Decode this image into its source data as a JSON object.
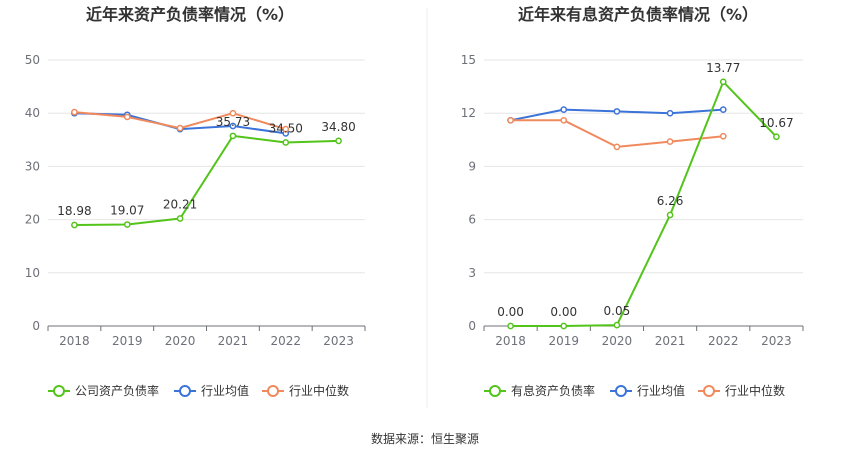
{
  "source_label": "数据来源：恒生聚源",
  "chart_data": [
    {
      "type": "line",
      "title": "近年来资产负债率情况（%）",
      "categories": [
        "2018",
        "2019",
        "2020",
        "2021",
        "2022",
        "2023"
      ],
      "ylim": [
        0,
        50
      ],
      "yticks": [
        0,
        10,
        20,
        30,
        40,
        50
      ],
      "ytick_labels": [
        "0",
        "10",
        "20",
        "30",
        "40",
        "50"
      ],
      "grid": true,
      "legend_position": "bottom",
      "series": [
        {
          "name": "公司资产负债率",
          "color": "#52c41a",
          "values": [
            18.98,
            19.07,
            20.21,
            35.73,
            34.5,
            34.8
          ],
          "labels": [
            "18.98",
            "19.07",
            "20.21",
            "35.73",
            "34.50",
            "34.80"
          ]
        },
        {
          "name": "行业均值",
          "color": "#3b73d9",
          "values": [
            40.0,
            39.7,
            37.0,
            37.6,
            36.2,
            null
          ]
        },
        {
          "name": "行业中位数",
          "color": "#f08a5d",
          "values": [
            40.2,
            39.3,
            37.2,
            40.0,
            37.0,
            null
          ]
        }
      ]
    },
    {
      "type": "line",
      "title": "近年来有息资产负债率情况（%）",
      "categories": [
        "2018",
        "2019",
        "2020",
        "2021",
        "2022",
        "2023"
      ],
      "ylim": [
        0,
        15
      ],
      "yticks": [
        0,
        3,
        6,
        9,
        12,
        15
      ],
      "ytick_labels": [
        "0",
        "3",
        "6",
        "9",
        "12",
        "15"
      ],
      "grid": true,
      "legend_position": "bottom",
      "series": [
        {
          "name": "有息资产负债率",
          "color": "#52c41a",
          "values": [
            0.0,
            0.0,
            0.05,
            6.26,
            13.77,
            10.67
          ],
          "labels": [
            "0.00",
            "0.00",
            "0.05",
            "6.26",
            "13.77",
            "10.67"
          ]
        },
        {
          "name": "行业均值",
          "color": "#3b73d9",
          "values": [
            11.6,
            12.2,
            12.1,
            12.0,
            12.2,
            null
          ]
        },
        {
          "name": "行业中位数",
          "color": "#f08a5d",
          "values": [
            11.6,
            11.6,
            10.1,
            10.4,
            10.7,
            null
          ]
        }
      ]
    }
  ]
}
